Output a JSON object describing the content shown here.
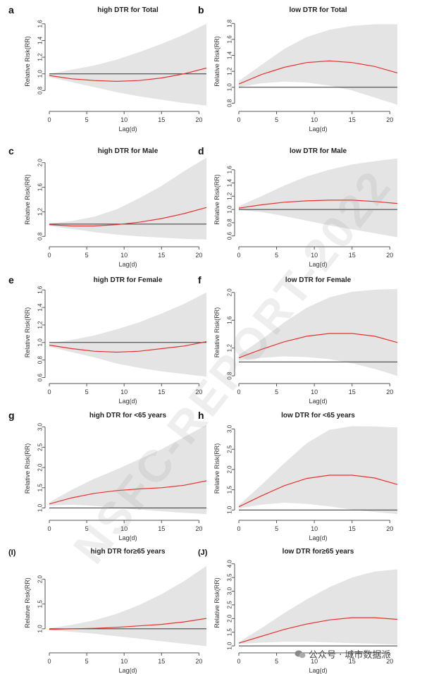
{
  "watermark": "NSFC-REPORT-2022",
  "footer": {
    "source": "公众号 · 城市数据派",
    "icon": "wechat-icon"
  },
  "colors": {
    "band": "#e4e4e4",
    "curve": "#e8312f",
    "ref": "#333333",
    "axis": "#555555"
  },
  "chart_data": [
    {
      "type": "line",
      "label": "a",
      "title": "high DTR for Total",
      "xlabel": "Lag(d)",
      "ylabel": "Relative Risk(RR)",
      "xlim": [
        0,
        21
      ],
      "ylim": [
        0.6,
        1.7
      ],
      "xticks": [
        0,
        5,
        10,
        15,
        20
      ],
      "yticks": [
        0.8,
        1.0,
        1.2,
        1.4,
        1.6
      ],
      "yticklabels": [
        "0.8",
        "1.0",
        "1.2",
        "1.4",
        "1.6"
      ],
      "ref": 1.0,
      "x": [
        0,
        3,
        6,
        9,
        12,
        15,
        18,
        21
      ],
      "rr": [
        0.98,
        0.94,
        0.92,
        0.91,
        0.92,
        0.95,
        1.0,
        1.07
      ],
      "lower": [
        0.96,
        0.9,
        0.84,
        0.78,
        0.73,
        0.69,
        0.65,
        0.62
      ],
      "upper": [
        1.0,
        1.05,
        1.1,
        1.17,
        1.26,
        1.36,
        1.47,
        1.6
      ]
    },
    {
      "type": "line",
      "label": "b",
      "title": "low DTR for Total",
      "xlabel": "Lag(d)",
      "ylabel": "Relative Risk(RR)",
      "xlim": [
        0,
        21
      ],
      "ylim": [
        0.75,
        1.9
      ],
      "xticks": [
        0,
        5,
        10,
        15,
        20
      ],
      "yticks": [
        0.8,
        1.0,
        1.2,
        1.4,
        1.6,
        1.8
      ],
      "yticklabels": [
        "0.8",
        "1.0",
        "1.2",
        "1.4",
        "1.6",
        "1.8"
      ],
      "ref": 1.0,
      "x": [
        0,
        3,
        6,
        9,
        12,
        15,
        18,
        21
      ],
      "rr": [
        1.04,
        1.16,
        1.25,
        1.31,
        1.33,
        1.31,
        1.26,
        1.18
      ],
      "lower": [
        1.0,
        1.05,
        1.07,
        1.06,
        1.02,
        0.96,
        0.87,
        0.78
      ],
      "upper": [
        1.08,
        1.28,
        1.48,
        1.63,
        1.72,
        1.77,
        1.79,
        1.79
      ]
    },
    {
      "type": "line",
      "label": "c",
      "title": "high  DTR for Male",
      "xlabel": "Lag(d)",
      "ylabel": "Relative Risk(RR)",
      "xlim": [
        0,
        21
      ],
      "ylim": [
        0.7,
        2.1
      ],
      "xticks": [
        0,
        5,
        10,
        15,
        20
      ],
      "yticks": [
        0.8,
        1.2,
        1.6,
        2.0
      ],
      "yticklabels": [
        "0.8",
        "1.2",
        "1.6",
        "2.0"
      ],
      "ref": 1.0,
      "x": [
        0,
        3,
        6,
        9,
        12,
        15,
        18,
        21
      ],
      "rr": [
        0.99,
        0.97,
        0.97,
        0.99,
        1.03,
        1.09,
        1.17,
        1.27
      ],
      "lower": [
        0.97,
        0.92,
        0.87,
        0.83,
        0.8,
        0.78,
        0.76,
        0.75
      ],
      "upper": [
        1.01,
        1.05,
        1.12,
        1.24,
        1.42,
        1.62,
        1.86,
        2.08
      ]
    },
    {
      "type": "line",
      "label": "d",
      "title": "low DTR for Male",
      "xlabel": "Lag(d)",
      "ylabel": "Relative Risk(RR)",
      "xlim": [
        0,
        21
      ],
      "ylim": [
        0.5,
        1.8
      ],
      "xticks": [
        0,
        5,
        10,
        15,
        20
      ],
      "yticks": [
        0.6,
        0.8,
        1.0,
        1.2,
        1.4,
        1.6
      ],
      "yticklabels": [
        "0.6",
        "0.8",
        "1.0",
        "1.2",
        "1.4",
        "1.6"
      ],
      "ref": 1.0,
      "x": [
        0,
        3,
        6,
        9,
        12,
        15,
        18,
        21
      ],
      "rr": [
        1.02,
        1.07,
        1.11,
        1.13,
        1.14,
        1.14,
        1.12,
        1.09
      ],
      "lower": [
        0.99,
        0.96,
        0.9,
        0.83,
        0.76,
        0.7,
        0.64,
        0.58
      ],
      "upper": [
        1.05,
        1.2,
        1.36,
        1.5,
        1.6,
        1.68,
        1.73,
        1.77
      ]
    },
    {
      "type": "line",
      "label": "e",
      "title": "high DTR for Female",
      "xlabel": "Lag(d)",
      "ylabel": "Relative Risk(RR)",
      "xlim": [
        0,
        21
      ],
      "ylim": [
        0.58,
        1.65
      ],
      "xticks": [
        0,
        5,
        10,
        15,
        20
      ],
      "yticks": [
        0.6,
        0.8,
        1.0,
        1.2,
        1.4,
        1.6
      ],
      "yticklabels": [
        "0.6",
        "0.8",
        "1.0",
        "1.2",
        "1.4",
        "1.6"
      ],
      "ref": 1.0,
      "x": [
        0,
        3,
        6,
        9,
        12,
        15,
        18,
        21
      ],
      "rr": [
        0.97,
        0.93,
        0.9,
        0.89,
        0.9,
        0.93,
        0.96,
        1.01
      ],
      "lower": [
        0.95,
        0.89,
        0.83,
        0.76,
        0.71,
        0.67,
        0.64,
        0.61
      ],
      "upper": [
        0.99,
        1.03,
        1.08,
        1.15,
        1.23,
        1.33,
        1.44,
        1.57
      ]
    },
    {
      "type": "line",
      "label": "f",
      "title": "low DTR for Female",
      "xlabel": "Lag(d)",
      "ylabel": "Relative Risk(RR)",
      "xlim": [
        0,
        21
      ],
      "ylim": [
        0.75,
        2.1
      ],
      "xticks": [
        0,
        5,
        10,
        15,
        20
      ],
      "yticks": [
        0.8,
        1.2,
        1.6,
        2.0
      ],
      "yticklabels": [
        "0.8",
        "1.2",
        "1.6",
        "2.0"
      ],
      "ref": 1.0,
      "x": [
        0,
        3,
        6,
        9,
        12,
        15,
        18,
        21
      ],
      "rr": [
        1.06,
        1.18,
        1.29,
        1.37,
        1.41,
        1.41,
        1.37,
        1.28
      ],
      "lower": [
        1.02,
        1.06,
        1.08,
        1.07,
        1.04,
        0.98,
        0.9,
        0.8
      ],
      "upper": [
        1.1,
        1.32,
        1.57,
        1.78,
        1.93,
        2.01,
        2.04,
        2.05
      ]
    },
    {
      "type": "line",
      "label": "g",
      "title": "high DTR for <65 years",
      "xlabel": "Lag(d)",
      "ylabel": "Relative Risk(RR)",
      "xlim": [
        0,
        21
      ],
      "ylim": [
        0.8,
        3.15
      ],
      "xticks": [
        0,
        5,
        10,
        15,
        20
      ],
      "yticks": [
        1.0,
        1.5,
        2.0,
        2.5,
        3.0
      ],
      "yticklabels": [
        "1.0",
        "1.5",
        "2.0",
        "2.5",
        "3.0"
      ],
      "ref": 1.0,
      "x": [
        0,
        3,
        6,
        9,
        12,
        15,
        18,
        21
      ],
      "rr": [
        1.1,
        1.25,
        1.36,
        1.43,
        1.47,
        1.5,
        1.56,
        1.67
      ],
      "lower": [
        1.06,
        1.08,
        1.05,
        1.0,
        0.96,
        0.92,
        0.88,
        0.85
      ],
      "upper": [
        1.14,
        1.45,
        1.72,
        1.95,
        2.2,
        2.45,
        2.75,
        3.05
      ]
    },
    {
      "type": "line",
      "label": "h",
      "title": "low DTR for <65 years",
      "xlabel": "Lag(d)",
      "ylabel": "Relative Risk(RR)",
      "xlim": [
        0,
        21
      ],
      "ylim": [
        0.85,
        3.2
      ],
      "xticks": [
        0,
        5,
        10,
        15,
        20
      ],
      "yticks": [
        1.0,
        1.5,
        2.0,
        2.5,
        3.0
      ],
      "yticklabels": [
        "1.0",
        "1.5",
        "2.0",
        "2.5",
        "3.0"
      ],
      "ref": 1.0,
      "x": [
        0,
        3,
        6,
        9,
        12,
        15,
        18,
        21
      ],
      "rr": [
        1.08,
        1.35,
        1.6,
        1.78,
        1.86,
        1.86,
        1.79,
        1.63
      ],
      "lower": [
        1.04,
        1.13,
        1.18,
        1.15,
        1.09,
        1.01,
        0.95,
        0.9
      ],
      "upper": [
        1.12,
        1.62,
        2.15,
        2.65,
        2.98,
        3.07,
        3.06,
        3.04
      ]
    },
    {
      "type": "line",
      "label": "(I)",
      "title": "high DTR for≥65 years",
      "xlabel": "Lag(d)",
      "ylabel": "Relative Risk(RR)",
      "xlim": [
        0,
        21
      ],
      "ylim": [
        0.6,
        2.45
      ],
      "xticks": [
        0,
        5,
        10,
        15,
        20
      ],
      "yticks": [
        1.0,
        1.5,
        2.0
      ],
      "yticklabels": [
        "1.0",
        "1.5",
        "2.0"
      ],
      "ref": 1.0,
      "x": [
        0,
        3,
        6,
        9,
        12,
        15,
        18,
        21
      ],
      "rr": [
        0.99,
        1.0,
        1.01,
        1.03,
        1.06,
        1.09,
        1.14,
        1.21
      ],
      "lower": [
        0.97,
        0.94,
        0.9,
        0.85,
        0.8,
        0.75,
        0.7,
        0.65
      ],
      "upper": [
        1.01,
        1.08,
        1.17,
        1.3,
        1.48,
        1.7,
        1.96,
        2.27
      ]
    },
    {
      "type": "line",
      "label": "(J)",
      "title": "low DTR for≥65 years",
      "xlabel": "Lag(d)",
      "ylabel": "Relative Risk(RR)",
      "xlim": [
        0,
        21
      ],
      "ylim": [
        0.9,
        4.25
      ],
      "xticks": [
        0,
        5,
        10,
        15,
        20
      ],
      "yticks": [
        1.0,
        1.5,
        2.0,
        2.5,
        3.0,
        3.5,
        4.0
      ],
      "yticklabels": [
        "1.0",
        "1.5",
        "2.0",
        "2.5",
        "3.0",
        "3.5",
        "4.0"
      ],
      "ref": 1.0,
      "x": [
        0,
        3,
        6,
        9,
        12,
        15,
        18,
        21
      ],
      "rr": [
        1.1,
        1.35,
        1.6,
        1.8,
        1.95,
        2.03,
        2.03,
        1.97
      ],
      "lower": [
        1.07,
        1.12,
        1.15,
        1.15,
        1.13,
        1.1,
        1.08,
        1.05
      ],
      "upper": [
        1.14,
        1.65,
        2.2,
        2.7,
        3.15,
        3.5,
        3.72,
        3.8
      ]
    }
  ]
}
